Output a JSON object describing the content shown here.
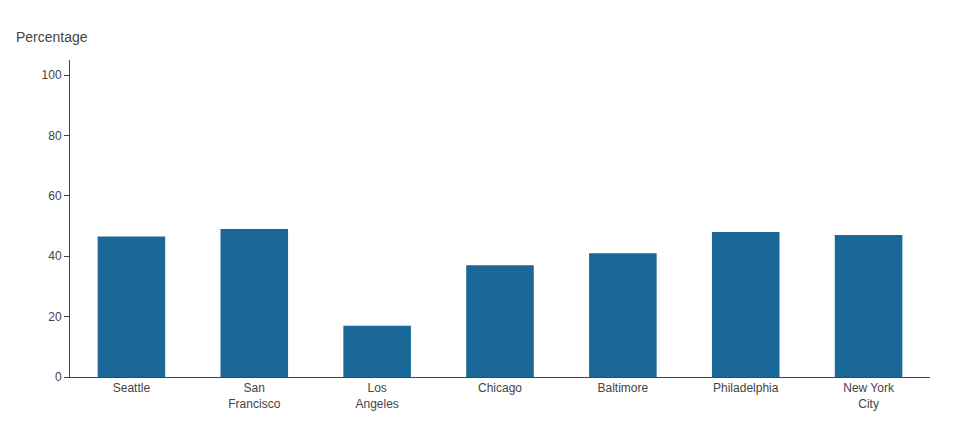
{
  "chart_data": {
    "type": "bar",
    "ylabel": "Percentage",
    "categories": [
      "Seattle",
      "San\nFrancisco",
      "Los\nAngeles",
      "Chicago",
      "Baltimore",
      "Philadelphia",
      "New York\nCity"
    ],
    "values": [
      46.5,
      49.0,
      17.0,
      37.0,
      41.0,
      48.0,
      47.0
    ],
    "color": "#1a6898",
    "ylim": [
      0,
      105
    ],
    "yticks": [
      0,
      20,
      40,
      60,
      80,
      100
    ],
    "grid": false
  }
}
